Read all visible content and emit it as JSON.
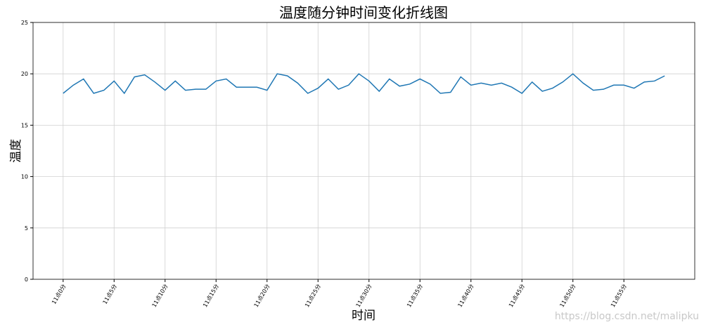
{
  "chart_data": {
    "type": "line",
    "title": "温度随分钟时间变化折线图",
    "x_label": "时间",
    "y_label": "温度",
    "categories": [
      "11点0分",
      null,
      null,
      null,
      null,
      "11点5分",
      null,
      null,
      null,
      null,
      "11点10分",
      null,
      null,
      null,
      null,
      "11点15分",
      null,
      null,
      null,
      null,
      "11点20分",
      null,
      null,
      null,
      null,
      "11点25分",
      null,
      null,
      null,
      null,
      "11点30分",
      null,
      null,
      null,
      null,
      "11点35分",
      null,
      null,
      null,
      null,
      "11点40分",
      null,
      null,
      null,
      null,
      "11点45分",
      null,
      null,
      null,
      null,
      "11点50分",
      null,
      null,
      null,
      null,
      "11点55分",
      null,
      null,
      null,
      null
    ],
    "series": [
      {
        "name": "温度",
        "color": "#1f77b4",
        "values": [
          18.1,
          18.9,
          19.5,
          18.1,
          18.4,
          19.3,
          18.1,
          19.7,
          19.9,
          19.2,
          18.4,
          19.3,
          18.4,
          18.5,
          18.5,
          19.3,
          19.5,
          18.7,
          18.7,
          18.7,
          18.4,
          20.0,
          19.8,
          19.1,
          18.1,
          18.6,
          19.5,
          18.5,
          18.9,
          20.0,
          19.3,
          18.3,
          19.5,
          18.8,
          19.0,
          19.5,
          19.0,
          18.1,
          18.2,
          19.7,
          18.9,
          19.1,
          18.9,
          19.1,
          18.7,
          18.1,
          19.2,
          18.3,
          18.6,
          19.2,
          20.0,
          19.1,
          18.4,
          18.5,
          18.9,
          18.9,
          18.6,
          19.2,
          19.3,
          19.8
        ]
      }
    ],
    "ylim": [
      0,
      25
    ],
    "yticks": [
      0,
      5,
      10,
      15,
      20,
      25
    ],
    "grid": true,
    "watermark": "https://blog.csdn.net/malipku"
  }
}
